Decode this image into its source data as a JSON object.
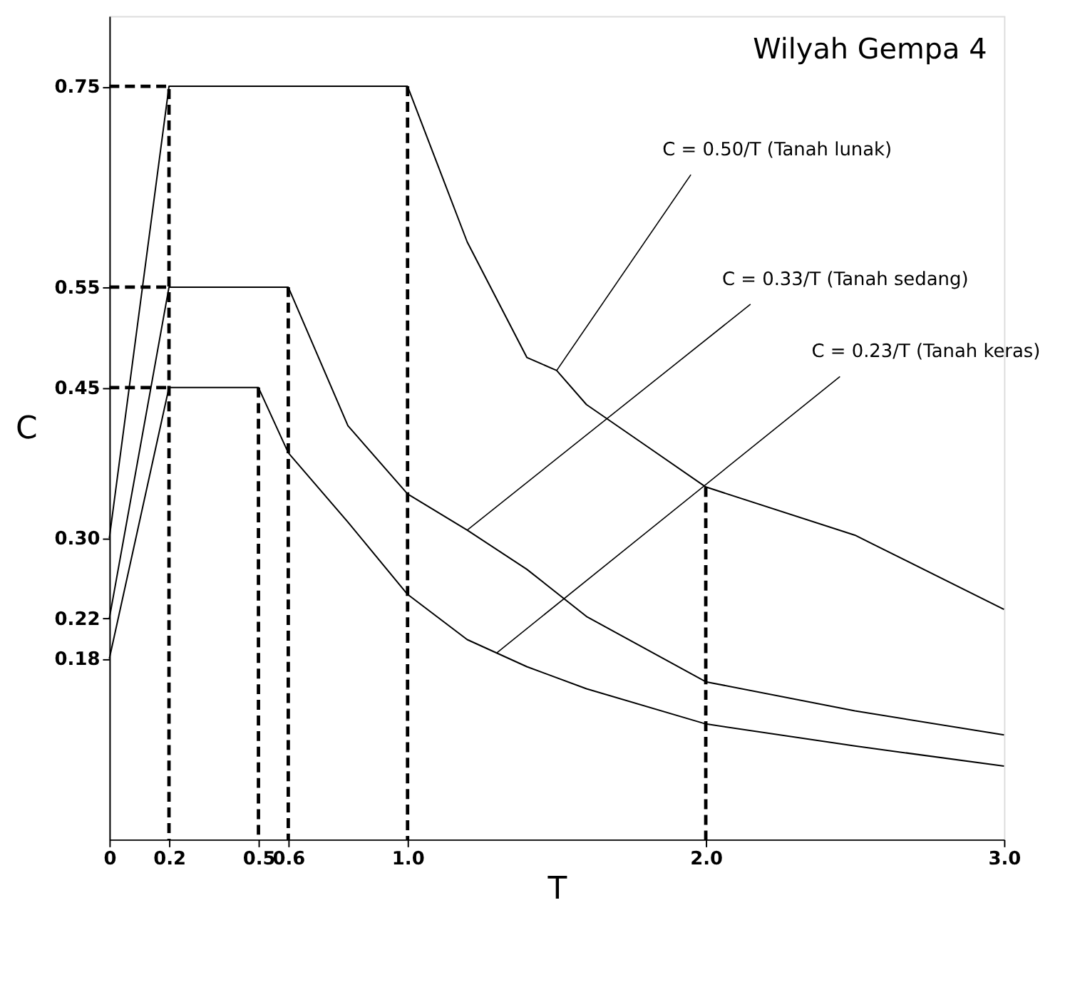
{
  "chart_data": {
    "type": "line",
    "title": "Wilyah Gempa 4",
    "xlabel": "T",
    "ylabel": "C",
    "xlim": [
      0,
      3.0
    ],
    "ylim": [
      0,
      0.82
    ],
    "xticks": [
      0,
      0.2,
      0.5,
      0.6,
      {
        "value": 1.0,
        "label": "1.0"
      },
      {
        "value": 2.0,
        "label": "2.0"
      },
      {
        "value": 3.0,
        "label": "3.0"
      }
    ],
    "yticks": [
      0.18,
      0.22,
      {
        "value": 0.3,
        "label": "0.30"
      },
      0.45,
      0.55,
      0.75
    ],
    "grid": false,
    "marker": "none",
    "line_style": "solid",
    "series": [
      {
        "color": "#000000",
        "x": [
          0,
          0.2,
          1.0,
          1.2,
          1.4,
          1.5,
          1.6,
          1.8,
          2.0,
          2.5,
          3.0
        ],
        "values": [
          0.3,
          0.75,
          0.75,
          0.595,
          0.48,
          0.467,
          0.433,
          0.392,
          0.351,
          0.303,
          0.229
        ]
      },
      {
        "color": "#000000",
        "x": [
          0,
          0.2,
          0.6,
          0.8,
          1.0,
          1.2,
          1.4,
          1.6,
          2.0,
          2.5,
          3.0
        ],
        "values": [
          0.22,
          0.55,
          0.55,
          0.412,
          0.344,
          0.308,
          0.269,
          0.222,
          0.157,
          0.128,
          0.104
        ]
      },
      {
        "color": "#000000",
        "x": [
          0,
          0.2,
          0.5,
          0.6,
          0.8,
          1.0,
          1.2,
          1.4,
          1.6,
          2.0,
          2.5,
          3.0
        ],
        "values": [
          0.18,
          0.45,
          0.45,
          0.385,
          0.316,
          0.244,
          0.199,
          0.172,
          0.15,
          0.115,
          0.093,
          0.073
        ]
      },
      {
        "color": "#000000",
        "line_style": "dashed",
        "x": [
          0,
          0.2,
          0.2
        ],
        "values": [
          0.75,
          0.75,
          0
        ]
      },
      {
        "color": "#000000",
        "line_style": "dashed",
        "x": [
          0,
          0.2
        ],
        "values": [
          0.55,
          0.55
        ]
      },
      {
        "color": "#000000",
        "line_style": "dashed",
        "x": [
          0,
          0.2
        ],
        "values": [
          0.45,
          0.45
        ]
      },
      {
        "color": "#000000",
        "line_style": "dashed",
        "x": [
          0.5,
          0.5
        ],
        "values": [
          0.45,
          0
        ]
      },
      {
        "color": "#000000",
        "line_style": "dashed",
        "x": [
          0.6,
          0.6
        ],
        "values": [
          0.55,
          0
        ]
      },
      {
        "color": "#000000",
        "line_style": "dashed",
        "x": [
          1.0,
          1.0
        ],
        "values": [
          0.75,
          0
        ]
      },
      {
        "color": "#000000",
        "line_style": "dashed",
        "x": [
          2.0,
          2.0
        ],
        "values": [
          0.351,
          0
        ]
      }
    ],
    "annotations": [
      {
        "text": "C = 0.50/T  (Tanah lunak)",
        "x": 1.5,
        "y": 0.467
      },
      {
        "text": "C = 0.33/T  (Tanah sedang)",
        "x": 1.2,
        "y": 0.308
      },
      {
        "text": "C = 0.23/T  (Tanah keras)",
        "x": 1.3,
        "y": 0.186
      }
    ]
  }
}
